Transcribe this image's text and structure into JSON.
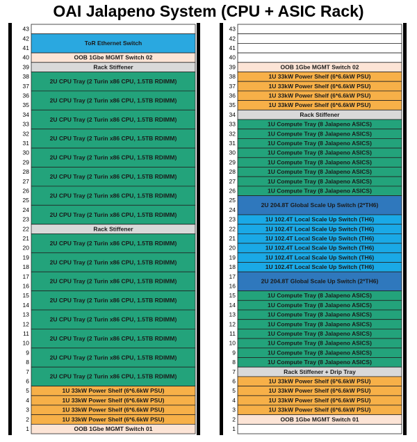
{
  "title": "OAI Jalapeno System (CPU + ASIC Rack)",
  "racks": [
    {
      "slots": [
        43,
        42,
        41,
        40,
        39,
        38,
        37,
        36,
        35,
        34,
        33,
        32,
        31,
        30,
        29,
        28,
        27,
        26,
        25,
        24,
        23,
        22,
        21,
        20,
        19,
        18,
        17,
        16,
        15,
        14,
        13,
        12,
        11,
        10,
        9,
        8,
        7,
        6,
        5,
        4,
        3,
        2,
        1
      ],
      "items": [
        {
          "units": 1,
          "color": "#ffffff"
        },
        {
          "label": "ToR Ethernet Switch",
          "units": 2,
          "color": "#2aa8e0"
        },
        {
          "label": "OOB 1Gbe MGMT Switch 02",
          "units": 1,
          "color": "#fce4d6"
        },
        {
          "label": "Rack Stiffener",
          "units": 1,
          "color": "#d9d9d9"
        },
        {
          "label": "2U CPU Tray (2 Turin x86 CPU, 1.5TB RDIMM)",
          "units": 2,
          "color": "#23a37b"
        },
        {
          "label": "2U CPU Tray (2 Turin x86 CPU, 1.5TB RDIMM)",
          "units": 2,
          "color": "#23a37b"
        },
        {
          "label": "2U CPU Tray (2 Turin x86 CPU, 1.5TB RDIMM)",
          "units": 2,
          "color": "#23a37b"
        },
        {
          "label": "2U CPU Tray (2 Turin x86 CPU, 1.5TB RDIMM)",
          "units": 2,
          "color": "#23a37b"
        },
        {
          "label": "2U CPU Tray (2 Turin x86 CPU, 1.5TB RDIMM)",
          "units": 2,
          "color": "#23a37b"
        },
        {
          "label": "2U CPU Tray (2 Turin x86 CPU, 1.5TB RDIMM)",
          "units": 2,
          "color": "#23a37b"
        },
        {
          "label": "2U CPU Tray (2 Turin x86 CPU, 1.5TB RDIMM)",
          "units": 2,
          "color": "#23a37b"
        },
        {
          "label": "2U CPU Tray (2 Turin x86 CPU, 1.5TB RDIMM)",
          "units": 2,
          "color": "#23a37b"
        },
        {
          "label": "Rack Stiffener",
          "units": 1,
          "color": "#d9d9d9"
        },
        {
          "label": "2U CPU Tray (2 Turin x86 CPU, 1.5TB RDIMM)",
          "units": 2,
          "color": "#23a37b"
        },
        {
          "label": "2U CPU Tray (2 Turin x86 CPU, 1.5TB RDIMM)",
          "units": 2,
          "color": "#23a37b"
        },
        {
          "label": "2U CPU Tray (2 Turin x86 CPU, 1.5TB RDIMM)",
          "units": 2,
          "color": "#23a37b"
        },
        {
          "label": "2U CPU Tray (2 Turin x86 CPU, 1.5TB RDIMM)",
          "units": 2,
          "color": "#23a37b"
        },
        {
          "label": "2U CPU Tray (2 Turin x86 CPU, 1.5TB RDIMM)",
          "units": 2,
          "color": "#23a37b"
        },
        {
          "label": "2U CPU Tray (2 Turin x86 CPU, 1.5TB RDIMM)",
          "units": 2,
          "color": "#23a37b"
        },
        {
          "label": "2U CPU Tray (2 Turin x86 CPU, 1.5TB RDIMM)",
          "units": 2,
          "color": "#23a37b"
        },
        {
          "label": "2U CPU Tray (2 Turin x86 CPU, 1.5TB RDIMM)",
          "units": 2,
          "color": "#23a37b"
        },
        {
          "label": "1U 33kW Power Shelf (6*6.6kW PSU)",
          "units": 1,
          "color": "#f7b048"
        },
        {
          "label": "1U 33kW Power Shelf (6*6.6kW PSU)",
          "units": 1,
          "color": "#f7b048"
        },
        {
          "label": "1U 33kW Power Shelf (6*6.6kW PSU)",
          "units": 1,
          "color": "#f7b048"
        },
        {
          "label": "1U 33kW Power Shelf (6*6.6kW PSU)",
          "units": 1,
          "color": "#f7b048"
        },
        {
          "label": "OOB 1Gbe MGMT Switch 01",
          "units": 1,
          "color": "#fce4d6"
        }
      ]
    },
    {
      "slots": [
        43,
        42,
        41,
        40,
        39,
        38,
        37,
        36,
        35,
        34,
        33,
        32,
        31,
        30,
        29,
        28,
        27,
        26,
        25,
        24,
        23,
        22,
        21,
        20,
        19,
        18,
        17,
        16,
        15,
        14,
        13,
        12,
        11,
        10,
        9,
        8,
        7,
        6,
        5,
        4,
        3,
        2,
        1
      ],
      "items": [
        {
          "units": 1,
          "color": "#ffffff"
        },
        {
          "units": 1,
          "color": "#ffffff"
        },
        {
          "units": 1,
          "color": "#ffffff"
        },
        {
          "units": 1,
          "color": "#ffffff"
        },
        {
          "label": "OOB 1Gbe MGMT Switch 02",
          "units": 1,
          "color": "#fce4d6"
        },
        {
          "label": "1U 33kW Power Shelf (6*6.6kW PSU)",
          "units": 1,
          "color": "#f7b048"
        },
        {
          "label": "1U 33kW Power Shelf (6*6.6kW PSU)",
          "units": 1,
          "color": "#f7b048"
        },
        {
          "label": "1U 33kW Power Shelf (6*6.6kW PSU)",
          "units": 1,
          "color": "#f7b048"
        },
        {
          "label": "1U 33kW Power Shelf (6*6.6kW PSU)",
          "units": 1,
          "color": "#f7b048"
        },
        {
          "label": "Rack Stiffener",
          "units": 1,
          "color": "#d9d9d9"
        },
        {
          "label": "1U Compute Tray (8 Jalapeno ASICS)",
          "units": 1,
          "color": "#23a37b"
        },
        {
          "label": "1U Compute Tray (8 Jalapeno ASICS)",
          "units": 1,
          "color": "#23a37b"
        },
        {
          "label": "1U Compute Tray (8 Jalapeno ASICS)",
          "units": 1,
          "color": "#23a37b"
        },
        {
          "label": "1U Compute Tray (8 Jalapeno ASICS)",
          "units": 1,
          "color": "#23a37b"
        },
        {
          "label": "1U Compute Tray (8 Jalapeno ASICS)",
          "units": 1,
          "color": "#23a37b"
        },
        {
          "label": "1U Compute Tray (8 Jalapeno ASICS)",
          "units": 1,
          "color": "#23a37b"
        },
        {
          "label": "1U Compute Tray (8 Jalapeno ASICS)",
          "units": 1,
          "color": "#23a37b"
        },
        {
          "label": "1U Compute Tray (8 Jalapeno ASICS)",
          "units": 1,
          "color": "#23a37b"
        },
        {
          "label": "2U 204.8T Global Scale Up Switch (2*TH6)",
          "units": 2,
          "color": "#2f78bd"
        },
        {
          "label": "1U 102.4T Local Scale Up Switch (TH6)",
          "units": 1,
          "color": "#1aa9e6"
        },
        {
          "label": "1U 102.4T Local Scale Up Switch (TH6)",
          "units": 1,
          "color": "#1aa9e6"
        },
        {
          "label": "1U 102.4T Local Scale Up Switch (TH6)",
          "units": 1,
          "color": "#1aa9e6"
        },
        {
          "label": "1U 102.4T Local Scale Up Switch (TH6)",
          "units": 1,
          "color": "#1aa9e6"
        },
        {
          "label": "1U 102.4T Local Scale Up Switch (TH6)",
          "units": 1,
          "color": "#1aa9e6"
        },
        {
          "label": "1U 102.4T Local Scale Up Switch (TH6)",
          "units": 1,
          "color": "#1aa9e6"
        },
        {
          "label": "2U 204.8T Global Scale Up Switch (2*TH6)",
          "units": 2,
          "color": "#2f78bd"
        },
        {
          "label": "1U Compute Tray (8 Jalapeno ASICS)",
          "units": 1,
          "color": "#23a37b"
        },
        {
          "label": "1U Compute Tray (8 Jalapeno ASICS)",
          "units": 1,
          "color": "#23a37b"
        },
        {
          "label": "1U Compute Tray (8 Jalapeno ASICS)",
          "units": 1,
          "color": "#23a37b"
        },
        {
          "label": "1U Compute Tray (8 Jalapeno ASICS)",
          "units": 1,
          "color": "#23a37b"
        },
        {
          "label": "1U Compute Tray (8 Jalapeno ASICS)",
          "units": 1,
          "color": "#23a37b"
        },
        {
          "label": "1U Compute Tray (8 Jalapeno ASICS)",
          "units": 1,
          "color": "#23a37b"
        },
        {
          "label": "1U Compute Tray (8 Jalapeno ASICS)",
          "units": 1,
          "color": "#23a37b"
        },
        {
          "label": "1U Compute Tray (8 Jalapeno ASICS)",
          "units": 1,
          "color": "#23a37b"
        },
        {
          "label": "Rack Stiffener + Drip Tray",
          "units": 1,
          "color": "#d9d9d9"
        },
        {
          "label": "1U 33kW Power Shelf (6*6.6kW PSU)",
          "units": 1,
          "color": "#f7b048"
        },
        {
          "label": "1U 33kW Power Shelf (6*6.6kW PSU)",
          "units": 1,
          "color": "#f7b048"
        },
        {
          "label": "1U 33kW Power Shelf (6*6.6kW PSU)",
          "units": 1,
          "color": "#f7b048"
        },
        {
          "label": "1U 33kW Power Shelf (6*6.6kW PSU)",
          "units": 1,
          "color": "#f7b048"
        },
        {
          "label": "OOB 1Gbe MGMT Switch 01",
          "units": 1,
          "color": "#fce4d6"
        },
        {
          "units": 1,
          "color": "#ffffff"
        }
      ]
    }
  ]
}
